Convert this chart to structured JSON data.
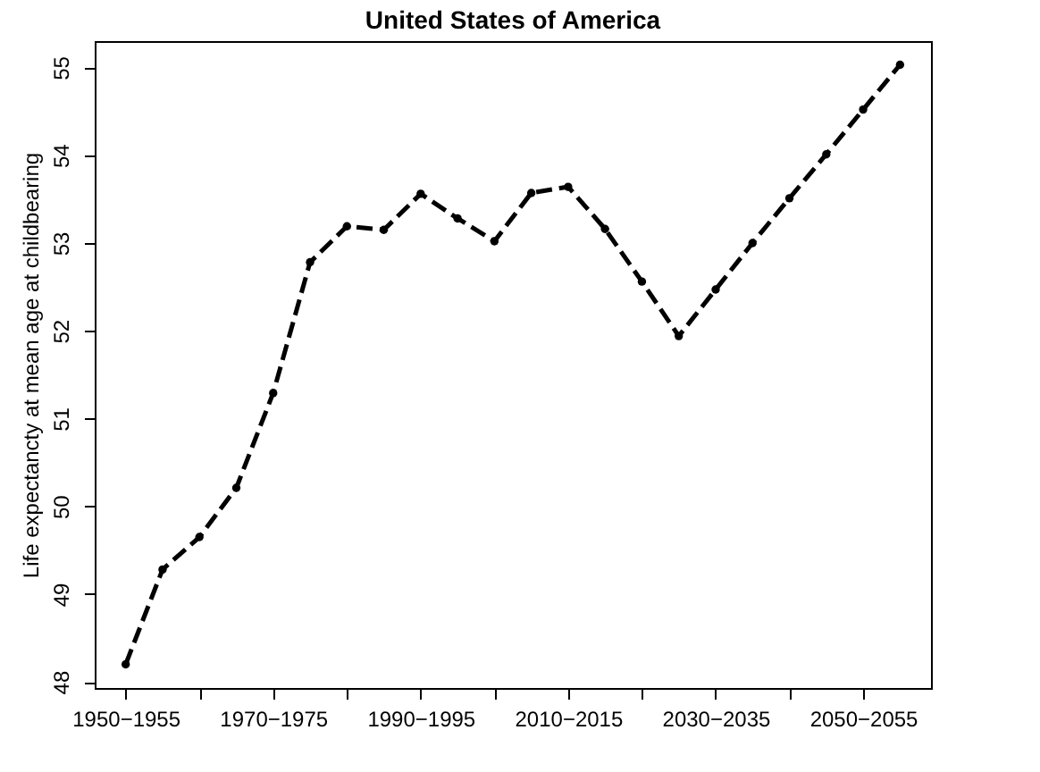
{
  "chart_data": {
    "type": "line",
    "title": "United States of America",
    "ylabel": "Life expectancty at mean age at childbearing",
    "categories": [
      "1950−1955",
      null,
      null,
      null,
      "1970−1975",
      null,
      null,
      null,
      "1990−1995",
      null,
      null,
      null,
      "2010−2015",
      null,
      null,
      null,
      "2030−2035",
      null,
      null,
      null,
      "2050−2055",
      null
    ],
    "series": [
      {
        "color": "#000000",
        "values": [
          48.2,
          49.28,
          49.65,
          50.21,
          51.29,
          52.78,
          53.19,
          53.15,
          53.56,
          53.28,
          53.02,
          53.57,
          53.64,
          53.16,
          52.56,
          51.94,
          52.47,
          53.0,
          53.51,
          54.01,
          54.52,
          55.03
        ]
      }
    ],
    "ylim": [
      47.93,
      55.3
    ],
    "yticks": [
      48,
      49,
      50,
      51,
      52,
      53,
      54,
      55
    ],
    "grid": false,
    "marker": "circle",
    "line_style": "dashed"
  }
}
